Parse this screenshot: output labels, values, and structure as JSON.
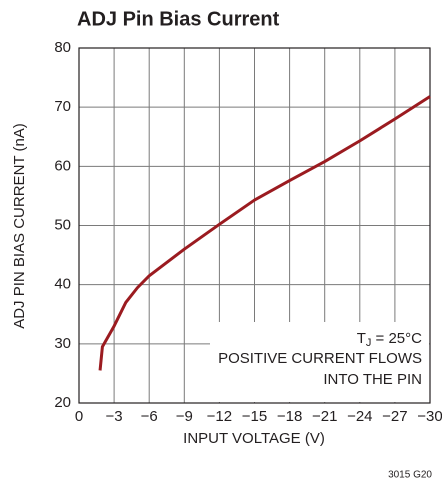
{
  "chart_data": {
    "type": "line",
    "title": "ADJ Pin Bias Current",
    "x_label": "INPUT VOLTAGE (V)",
    "y_label": "ADJ PIN BIAS CURRENT (nA)",
    "footer": "3015 G20",
    "annotation": {
      "symbol": "T",
      "subscript": "J",
      "condition": " = 25°C",
      "lines": [
        "POSITIVE CURRENT FLOWS",
        "INTO THE PIN"
      ]
    },
    "xlim": [
      0,
      -30
    ],
    "ylim": [
      20,
      80
    ],
    "xticks": [
      0,
      {
        "value": -3,
        "label": "−3"
      },
      {
        "value": -6,
        "label": "−6"
      },
      {
        "value": -9,
        "label": "−9"
      },
      {
        "value": -12,
        "label": "−12"
      },
      {
        "value": -15,
        "label": "−15"
      },
      {
        "value": -18,
        "label": "−18"
      },
      {
        "value": -21,
        "label": "−21"
      },
      {
        "value": -24,
        "label": "−24"
      },
      {
        "value": -27,
        "label": "−27"
      },
      {
        "value": -30,
        "label": "−30"
      }
    ],
    "yticks": [
      20,
      30,
      40,
      50,
      60,
      70,
      80
    ],
    "grid": true,
    "series": [
      {
        "name": "ADJ pin bias current",
        "color": "#9b1b20",
        "x": [
          -1.8,
          -2,
          -3,
          -4,
          -5,
          -6,
          -9,
          -12,
          -15,
          -18,
          -21,
          -24,
          -27,
          -30
        ],
        "values": [
          25.5,
          29.5,
          33,
          37,
          39.5,
          41.5,
          46,
          50.2,
          54.3,
          57.6,
          60.8,
          64.3,
          68,
          71.8
        ]
      }
    ]
  }
}
